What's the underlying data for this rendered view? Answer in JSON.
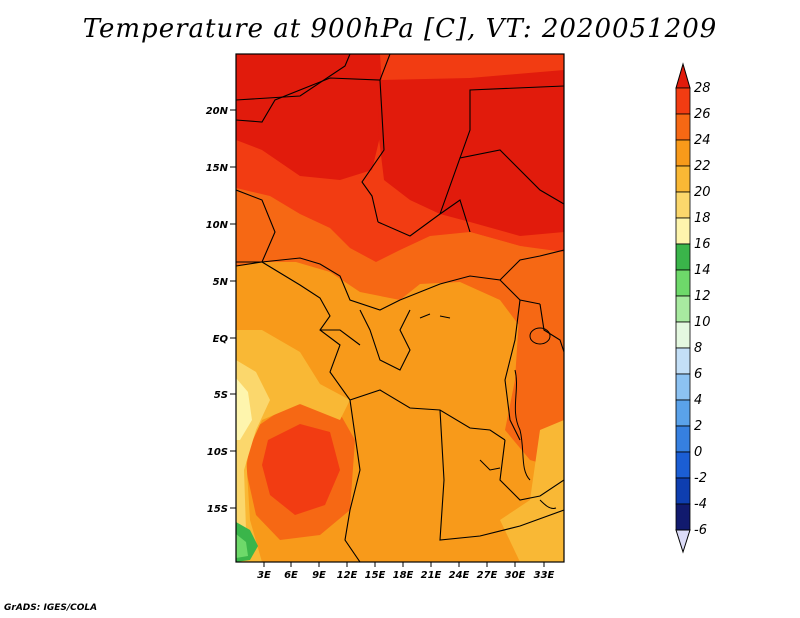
{
  "title": "Temperature at 900hPa [C], VT: 2020051209",
  "credit": "GrADS: IGES/COLA",
  "map": {
    "lat_labels": [
      "20N",
      "15N",
      "10N",
      "5N",
      "EQ",
      "5S",
      "10S",
      "15S"
    ],
    "lon_labels": [
      "3E",
      "6E",
      "9E",
      "12E",
      "15E",
      "18E",
      "21E",
      "24E",
      "27E",
      "30E",
      "33E"
    ]
  },
  "colorbar": {
    "labels": [
      "28",
      "26",
      "24",
      "22",
      "20",
      "18",
      "16",
      "14",
      "12",
      "10",
      "8",
      "6",
      "4",
      "2",
      "0",
      "-2",
      "-4",
      "-6"
    ],
    "colors": [
      "#e11b0c",
      "#f23c12",
      "#f66814",
      "#f89a1a",
      "#f9b835",
      "#fbd76c",
      "#fef5ad",
      "#3ab54a",
      "#6ed96a",
      "#a8eaa0",
      "#e4f8e0",
      "#c3dff7",
      "#8cc2f2",
      "#5aa2ea",
      "#3680e0",
      "#1b5ed4",
      "#0e3eb0",
      "#111a6e"
    ],
    "top_arrow_color": "#e11b0c",
    "bottom_arrow_color": "#dcdcf8"
  },
  "field_colors": {
    "c28": "#e11b0c",
    "c26": "#f23c12",
    "c24": "#f66814",
    "c22": "#f89a1a",
    "c20": "#f9b835",
    "c18": "#fbd76c",
    "c16": "#fef5ad",
    "c14": "#3ab54a",
    "c12": "#6ed96a"
  }
}
